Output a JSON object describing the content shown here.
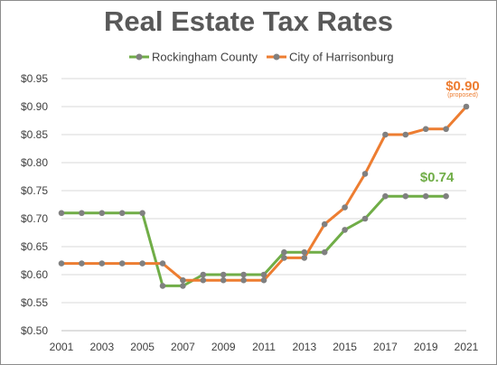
{
  "chart_data": {
    "type": "line",
    "title": "Real Estate Tax Rates",
    "xlabel": "",
    "ylabel": "",
    "x": [
      2001,
      2002,
      2003,
      2004,
      2005,
      2006,
      2007,
      2008,
      2009,
      2010,
      2011,
      2012,
      2013,
      2014,
      2015,
      2016,
      2017,
      2018,
      2019,
      2020,
      2021
    ],
    "xlim": [
      2001,
      2021
    ],
    "x_tick_labels": [
      "2001",
      "2003",
      "2005",
      "2007",
      "2009",
      "2011",
      "2013",
      "2015",
      "2017",
      "2019",
      "2021"
    ],
    "ylim": [
      0.5,
      0.95
    ],
    "y_tick_labels": [
      "$0.50",
      "$0.55",
      "$0.60",
      "$0.65",
      "$0.70",
      "$0.75",
      "$0.80",
      "$0.85",
      "$0.90",
      "$0.95"
    ],
    "grid": "horizontal",
    "legend_position": "top",
    "series": [
      {
        "name": "Rockingham County",
        "color": "#70ad47",
        "x": [
          2001,
          2002,
          2003,
          2004,
          2005,
          2006,
          2007,
          2008,
          2009,
          2010,
          2011,
          2012,
          2013,
          2014,
          2015,
          2016,
          2017,
          2018,
          2019,
          2020
        ],
        "values": [
          0.71,
          0.71,
          0.71,
          0.71,
          0.71,
          0.58,
          0.58,
          0.6,
          0.6,
          0.6,
          0.6,
          0.64,
          0.64,
          0.64,
          0.68,
          0.7,
          0.74,
          0.74,
          0.74,
          0.74
        ]
      },
      {
        "name": "City of Harrisonburg",
        "color": "#ed7d31",
        "x": [
          2001,
          2002,
          2003,
          2004,
          2005,
          2006,
          2007,
          2008,
          2009,
          2010,
          2011,
          2012,
          2013,
          2014,
          2015,
          2016,
          2017,
          2018,
          2019,
          2020,
          2021
        ],
        "values": [
          0.62,
          0.62,
          0.62,
          0.62,
          0.62,
          0.62,
          0.59,
          0.59,
          0.59,
          0.59,
          0.59,
          0.63,
          0.63,
          0.69,
          0.72,
          0.78,
          0.85,
          0.85,
          0.86,
          0.86,
          0.9
        ]
      }
    ],
    "marker_color": "#808080",
    "annotations": [
      {
        "text": "$0.90",
        "subtext": "(proposed)",
        "series": "City of Harrisonburg",
        "x": 2021,
        "y": 0.9,
        "color": "#ed7d31"
      },
      {
        "text": "$0.74",
        "series": "Rockingham County",
        "x": 2020,
        "y": 0.74,
        "color": "#70ad47"
      }
    ]
  }
}
